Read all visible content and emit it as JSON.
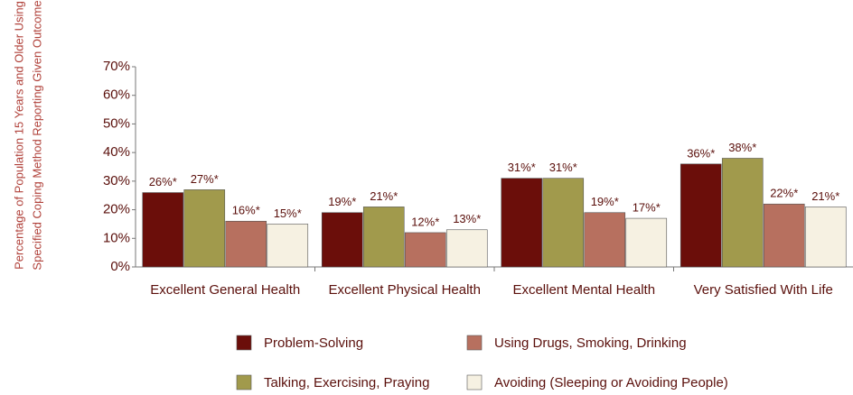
{
  "chart_data": {
    "type": "bar",
    "y_label": [
      "Percentage of Population 15 Years and Older Using",
      "Specified Coping Method Reporting Given Outcome"
    ],
    "categories": [
      "Excellent General Health",
      "Excellent Physical Health",
      "Excellent Mental Health",
      "Very Satisfied With Life"
    ],
    "series": [
      {
        "name": "Problem-Solving",
        "color": "#6b0e0a",
        "values": [
          26,
          19,
          31,
          36
        ],
        "value_labels": [
          "26%*",
          "19%*",
          "31%*",
          "36%*"
        ]
      },
      {
        "name": "Talking, Exercising, Praying",
        "color": "#a19a4c",
        "values": [
          27,
          21,
          31,
          38
        ],
        "value_labels": [
          "27%*",
          "21%*",
          "31%*",
          "38%*"
        ]
      },
      {
        "name": "Using Drugs, Smoking, Drinking",
        "color": "#b7705f",
        "values": [
          16,
          12,
          19,
          22
        ],
        "value_labels": [
          "16%*",
          "12%*",
          "19%*",
          "22%*"
        ]
      },
      {
        "name": "Avoiding (Sleeping or Avoiding People)",
        "color": "#f6f1e2",
        "values": [
          15,
          13,
          17,
          21
        ],
        "value_labels": [
          "15%*",
          "13%*",
          "17%*",
          "21%*"
        ]
      }
    ],
    "ylim": [
      0,
      70
    ],
    "yticks": [
      {
        "value": 0,
        "label": "0%"
      },
      {
        "value": 10,
        "label": "10%"
      },
      {
        "value": 20,
        "label": "20%"
      },
      {
        "value": 30,
        "label": "30%"
      },
      {
        "value": 40,
        "label": "40%"
      },
      {
        "value": 50,
        "label": "50%"
      },
      {
        "value": 60,
        "label": "60%"
      },
      {
        "value": 70,
        "label": "70%"
      }
    ],
    "legend": "bottom"
  }
}
